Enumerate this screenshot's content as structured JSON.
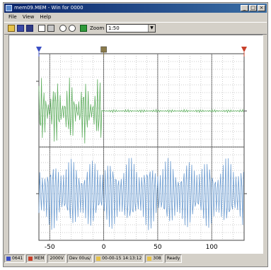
{
  "window": {
    "title": "mem09.MEM - Win for 0000",
    "buttons": {
      "minimize": "_",
      "maximize": "□",
      "close": "×"
    }
  },
  "menu": {
    "items": [
      "File",
      "View",
      "Help"
    ]
  },
  "toolbar": {
    "zoom_label": "Zoom",
    "zoom_value": "1:50",
    "icons": [
      "open-folder-icon",
      "save-icon",
      "save-all-icon",
      "copy-icon",
      "paste-icon",
      "zoom-out-icon",
      "zoom-in-icon",
      "green-block-icon"
    ]
  },
  "colors": {
    "trace_top": "#5fae5f",
    "trace_bottom": "#6b9bd0",
    "grid": "#444444",
    "marker_left": "#3a4ec4",
    "marker_mid": "#8a7a4a",
    "marker_right": "#c8402a"
  },
  "chart_data": {
    "type": "line",
    "x_axis": {
      "ticks": [
        -50,
        0,
        50,
        100
      ],
      "tick_labels": [
        "-50",
        "0",
        "50",
        "100"
      ],
      "range": [
        -60,
        130
      ]
    },
    "series": [
      {
        "values": []
      },
      {
        "values": []
      }
    ],
    "markers": [
      {
        "x": -60,
        "color_key": "marker_left"
      },
      {
        "x": 0,
        "color_key": "marker_mid"
      },
      {
        "x": 130,
        "color_key": "marker_right"
      }
    ],
    "grid": true
  },
  "status": {
    "cells": [
      "0641",
      "MEM",
      "2000V",
      "Dev 00us/",
      "00-00-15 14:13:12",
      "308",
      "Ready"
    ]
  }
}
